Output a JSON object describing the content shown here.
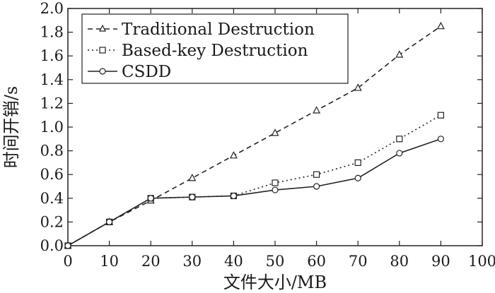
{
  "chart_data": {
    "type": "line",
    "xlabel": "文件大小/MB",
    "ylabel": "时间开销/s",
    "xlim": [
      0,
      100
    ],
    "ylim": [
      0.0,
      2.0
    ],
    "x_ticks": [
      "0",
      "10",
      "20",
      "30",
      "40",
      "50",
      "60",
      "70",
      "80",
      "90",
      "100"
    ],
    "y_ticks": [
      "0.0",
      "0.2",
      "0.4",
      "0.6",
      "0.8",
      "1.0",
      "1.2",
      "1.4",
      "1.6",
      "1.8",
      "2.0"
    ],
    "grid": false,
    "legend_position": "top-left",
    "x": [
      0,
      10,
      20,
      30,
      40,
      50,
      60,
      70,
      80,
      90
    ],
    "series": [
      {
        "name": "Traditional Destruction",
        "marker": "triangle",
        "line": "dashed",
        "values": [
          0.0,
          0.2,
          0.38,
          0.57,
          0.76,
          0.95,
          1.14,
          1.33,
          1.61,
          1.85
        ]
      },
      {
        "name": "Based-key Destruction",
        "marker": "square",
        "line": "dotted",
        "values": [
          0.0,
          0.2,
          0.4,
          0.41,
          0.42,
          0.53,
          0.6,
          0.7,
          0.9,
          1.1
        ]
      },
      {
        "name": "CSDD",
        "marker": "circle",
        "line": "solid",
        "values": [
          0.0,
          0.2,
          0.4,
          0.41,
          0.42,
          0.47,
          0.5,
          0.57,
          0.78,
          0.9
        ]
      }
    ]
  }
}
